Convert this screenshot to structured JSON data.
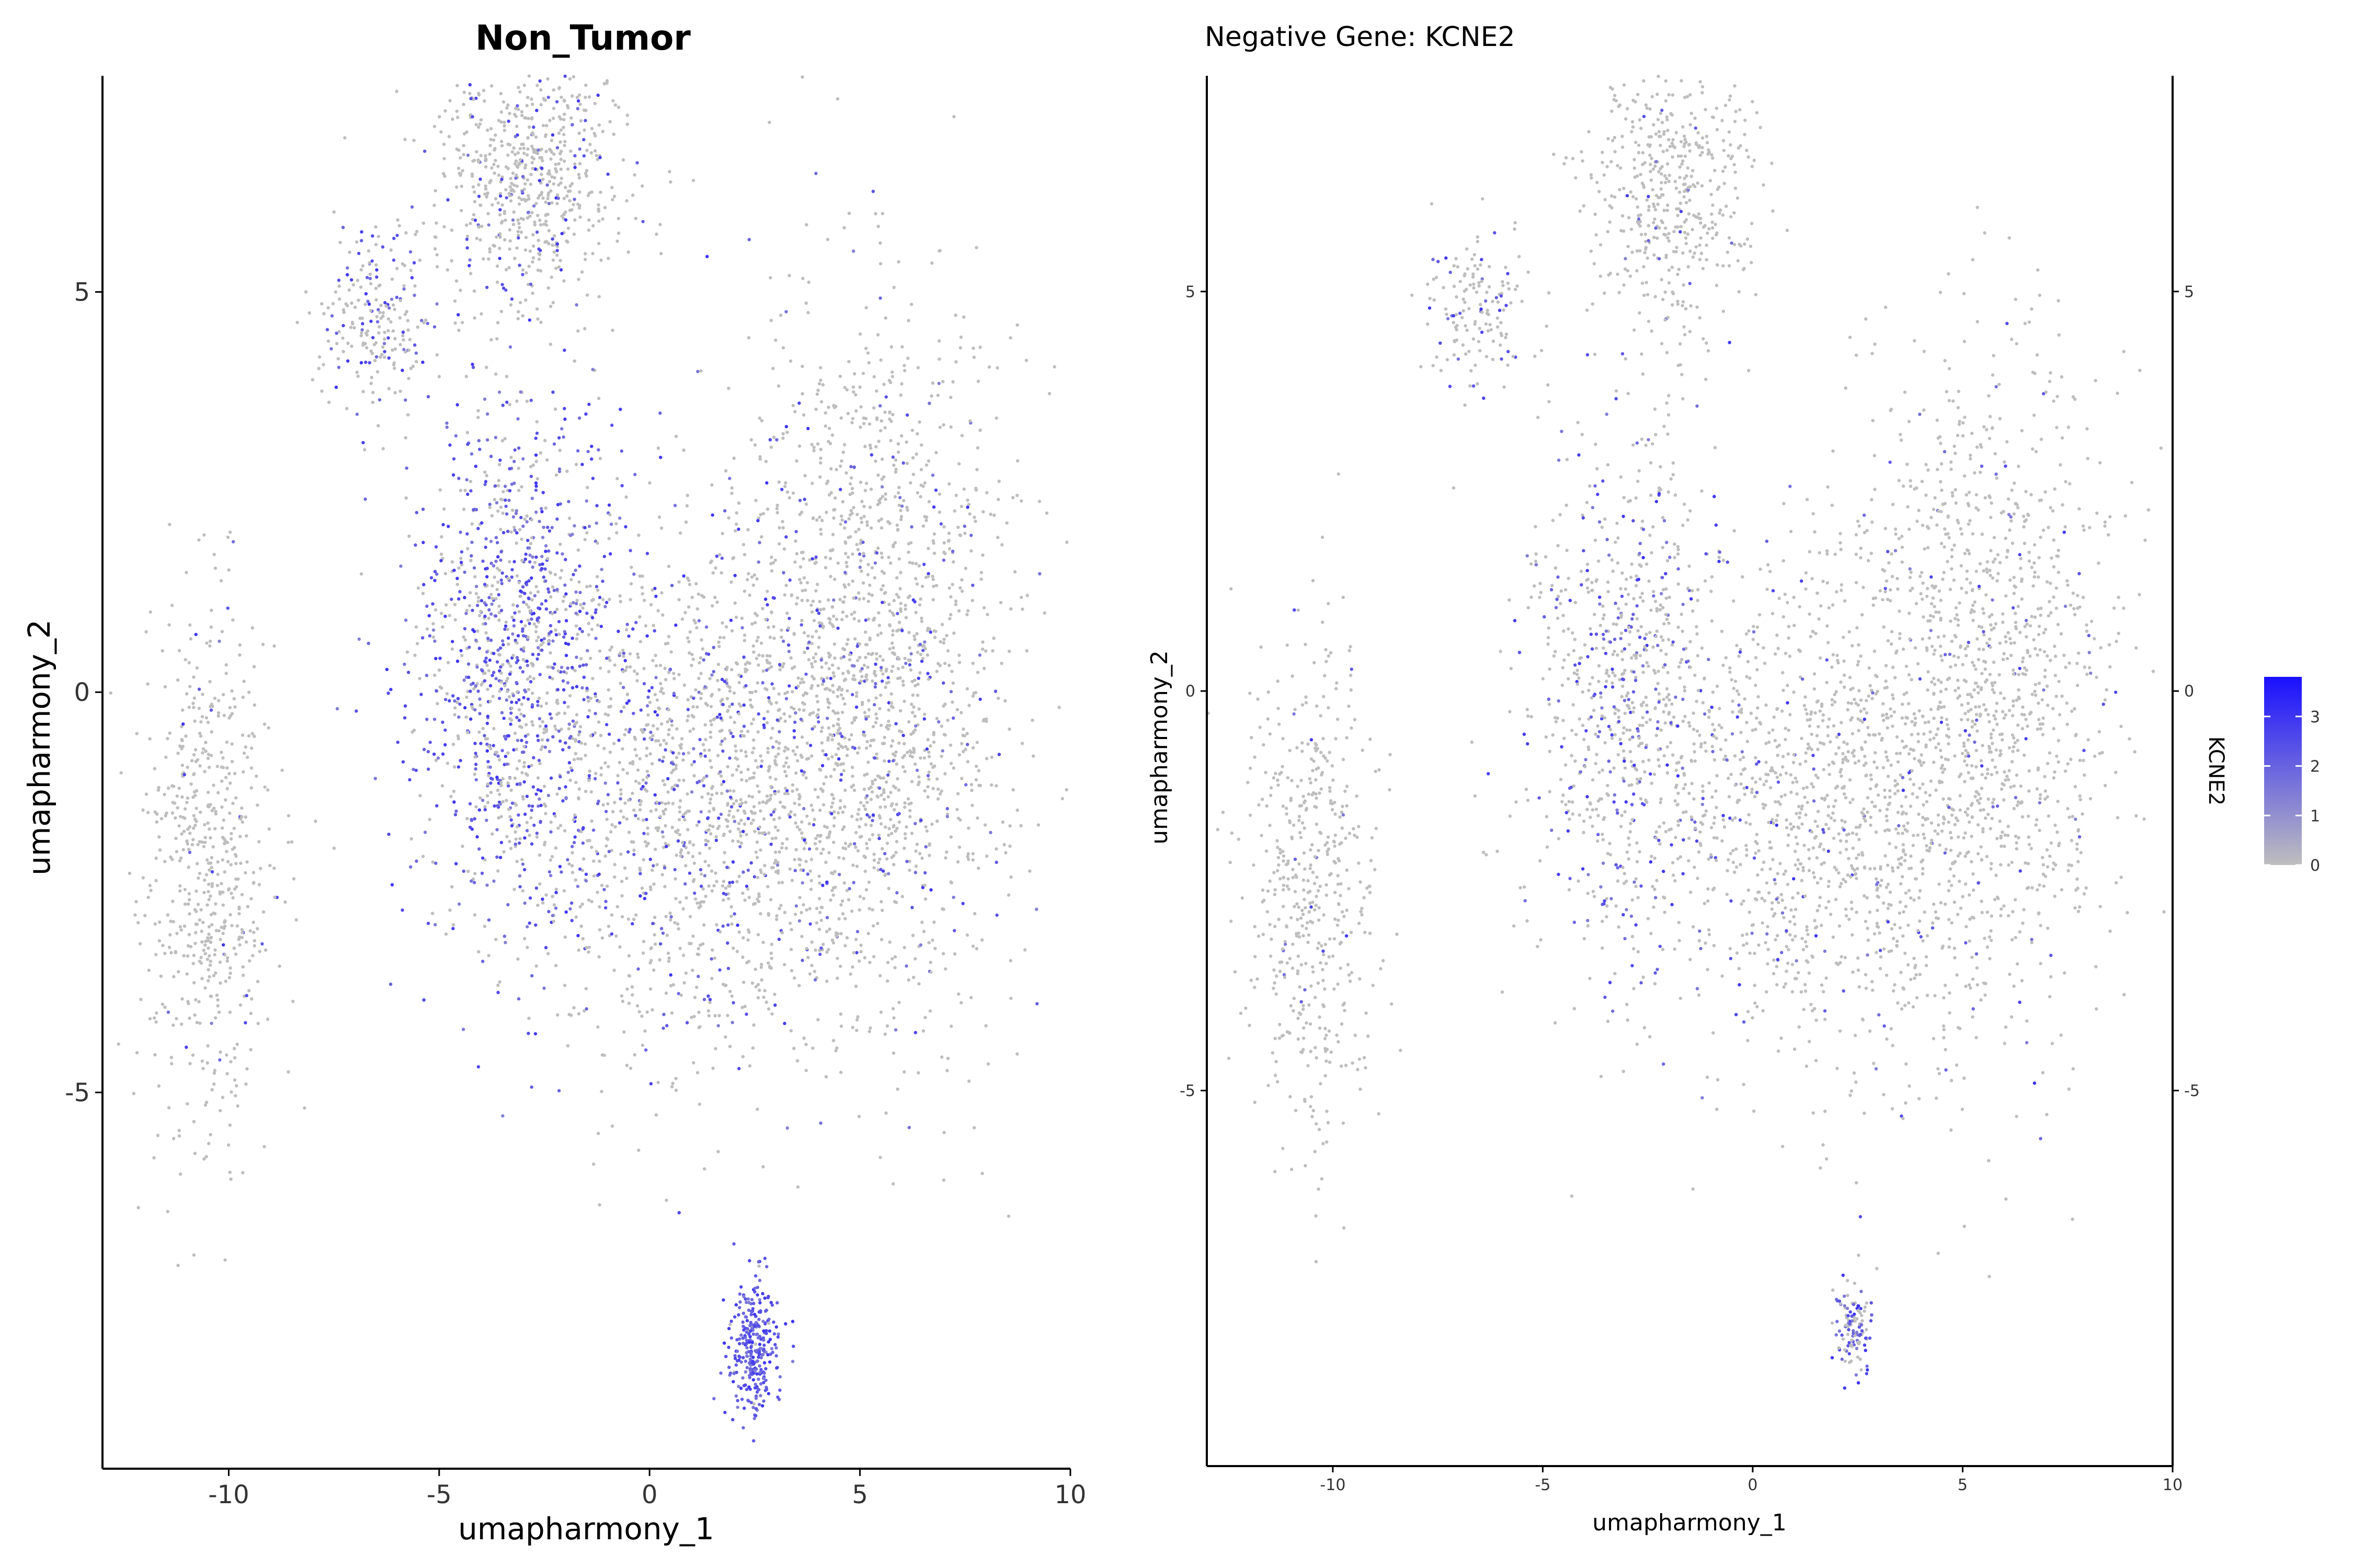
{
  "colors": {
    "low": "#bebebe",
    "high": "#1a10ff",
    "axis": "#000000",
    "tick_text": "#333333",
    "background": "#ffffff"
  },
  "chart_data": [
    {
      "type": "scatter",
      "title": "Non_Tumor",
      "xlabel": "umapharmony_1",
      "ylabel": "umapharmony_2",
      "xlim": [
        -13,
        10
      ],
      "ylim": [
        -9.7,
        7.7
      ],
      "x_ticks": [
        -10,
        -5,
        0,
        5,
        10
      ],
      "y_ticks": [
        -5,
        0,
        5
      ],
      "x_tick_labels": [
        "-10",
        "-5",
        "0",
        "5",
        "10"
      ],
      "y_tick_labels": [
        "-5",
        "0",
        "5"
      ],
      "grid": false,
      "color_by": "KCNE2 expression (blended grey → blue)",
      "clusters": [
        {
          "name": "top-cluster",
          "cx": -2.8,
          "cy": 6.5,
          "sx": 1.1,
          "sy": 0.9,
          "n": 700,
          "expr": 0.12
        },
        {
          "name": "small-top-left",
          "cx": -6.5,
          "cy": 4.7,
          "sx": 0.7,
          "sy": 0.6,
          "n": 220,
          "expr": 0.35
        },
        {
          "name": "left-arc",
          "cx": -10.5,
          "cy": -2.3,
          "sx": 0.8,
          "sy": 1.6,
          "n": 600,
          "expr": 0.05
        },
        {
          "name": "center-left",
          "cx": -3.2,
          "cy": 0.3,
          "sx": 1.2,
          "sy": 1.7,
          "n": 1200,
          "expr": 0.6
        },
        {
          "name": "center",
          "cx": 1.5,
          "cy": -1.2,
          "sx": 2.0,
          "sy": 1.7,
          "n": 1500,
          "expr": 0.2
        },
        {
          "name": "right",
          "cx": 5.5,
          "cy": 0.3,
          "sx": 1.6,
          "sy": 2.2,
          "n": 1500,
          "expr": 0.12
        },
        {
          "name": "bottom-small",
          "cx": 2.5,
          "cy": -8.2,
          "sx": 0.3,
          "sy": 0.4,
          "n": 300,
          "expr": 0.95
        }
      ]
    },
    {
      "type": "scatter",
      "title": "Negative Gene: KCNE2",
      "xlabel": "umapharmony_1",
      "ylabel": "umapharmony_2",
      "xlim": [
        -13,
        10
      ],
      "ylim": [
        -9.7,
        7.7
      ],
      "x_ticks": [
        -10,
        -5,
        0,
        5,
        10
      ],
      "y_ticks": [
        -5,
        0,
        5
      ],
      "x_tick_labels": [
        "-10",
        "-5",
        "0",
        "5",
        "10"
      ],
      "y_tick_labels": [
        "-5",
        "0",
        "5"
      ],
      "grid": false,
      "legend": {
        "title": "KCNE2",
        "placement": "right",
        "ticks": [
          0,
          1,
          2,
          3
        ],
        "tick_labels": [
          "0",
          "1",
          "2",
          "3"
        ],
        "range": [
          0,
          3.8
        ]
      },
      "clusters": [
        {
          "name": "top-cluster",
          "cx": -2.0,
          "cy": 6.3,
          "sx": 1.0,
          "sy": 0.9,
          "n": 500,
          "expr": 0.03
        },
        {
          "name": "small-top-left",
          "cx": -6.5,
          "cy": 4.8,
          "sx": 0.6,
          "sy": 0.5,
          "n": 150,
          "expr": 0.15
        },
        {
          "name": "left-arc",
          "cx": -10.5,
          "cy": -2.5,
          "sx": 0.8,
          "sy": 1.6,
          "n": 500,
          "expr": 0.03
        },
        {
          "name": "center-left",
          "cx": -3.0,
          "cy": 0.0,
          "sx": 1.2,
          "sy": 1.7,
          "n": 800,
          "expr": 0.3
        },
        {
          "name": "center",
          "cx": 1.5,
          "cy": -1.5,
          "sx": 2.0,
          "sy": 1.6,
          "n": 1100,
          "expr": 0.08
        },
        {
          "name": "right",
          "cx": 5.5,
          "cy": 0.0,
          "sx": 1.6,
          "sy": 2.2,
          "n": 1200,
          "expr": 0.05
        },
        {
          "name": "bottom-small",
          "cx": 2.4,
          "cy": -8.0,
          "sx": 0.25,
          "sy": 0.3,
          "n": 120,
          "expr": 0.5
        }
      ]
    }
  ]
}
